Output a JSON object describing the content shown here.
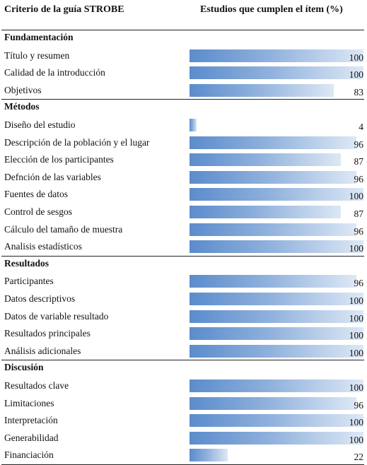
{
  "header": {
    "col1": "Criterio de la guía STROBE",
    "col2": "Estudios que cumplen el ítem (%)"
  },
  "chart_data": {
    "type": "bar",
    "orientation": "horizontal",
    "xlim": [
      0,
      100
    ],
    "colors": {
      "bar_start": "#5b8ccc",
      "bar_end": "#dde8f5"
    },
    "sections": [
      {
        "name": "Fundamentación",
        "items": [
          {
            "label": "Título y resumen",
            "value": 100
          },
          {
            "label": "Calidad de la introducción",
            "value": 100
          },
          {
            "label": "Objetivos",
            "value": 83
          }
        ]
      },
      {
        "name": "Métodos",
        "items": [
          {
            "label": "Diseño del estudio",
            "value": 4
          },
          {
            "label": "Descripción de la población y el lugar",
            "value": 96
          },
          {
            "label": "Elección de los participantes",
            "value": 87
          },
          {
            "label": "Defnción de las variables",
            "value": 96
          },
          {
            "label": "Fuentes de datos",
            "value": 100
          },
          {
            "label": "Control de sesgos",
            "value": 87
          },
          {
            "label": "Cálculo del tamaño de muestra",
            "value": 96
          },
          {
            "label": "Analisis estadísticos",
            "value": 100
          }
        ]
      },
      {
        "name": "Resultados",
        "items": [
          {
            "label": "Participantes",
            "value": 96
          },
          {
            "label": "Datos descriptivos",
            "value": 100
          },
          {
            "label": "Datos de variable resultado",
            "value": 100
          },
          {
            "label": "Resultados principales",
            "value": 100
          },
          {
            "label": "Análisis adicionales",
            "value": 100
          }
        ]
      },
      {
        "name": "Discusión",
        "items": [
          {
            "label": "Resultados clave",
            "value": 100
          },
          {
            "label": "Limitaciones",
            "value": 96
          },
          {
            "label": "Interpretación",
            "value": 100
          },
          {
            "label": "Generabilidad",
            "value": 100
          },
          {
            "label": "Financiación",
            "value": 22
          }
        ]
      }
    ]
  }
}
